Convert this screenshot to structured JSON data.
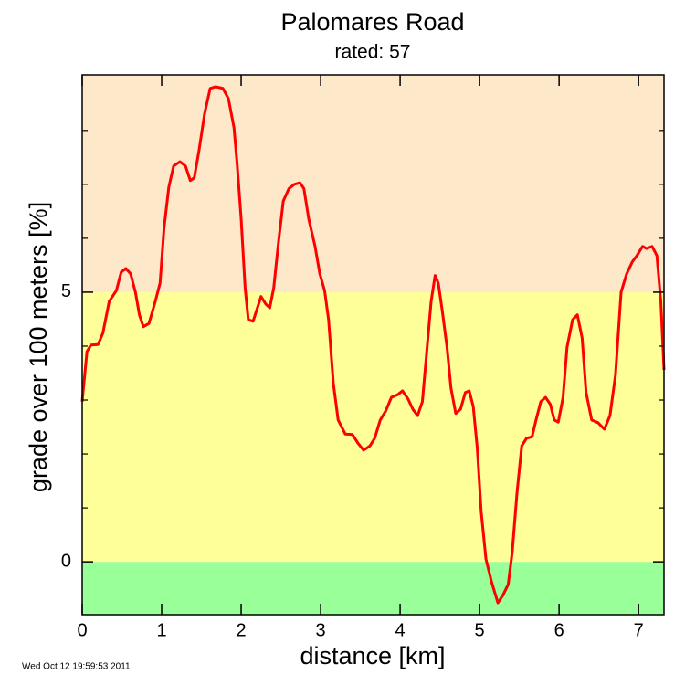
{
  "chart_data": {
    "type": "line",
    "title": "Palomares Road",
    "subtitle": "rated: 57",
    "x_label": "distance [km]",
    "y_label": "grade over 100 meters [%]",
    "footer": "Wed Oct 12 19:59:53 2011",
    "xlim": [
      0,
      7.32
    ],
    "ylim": [
      -0.98,
      9.03
    ],
    "xticks": [
      0,
      1,
      2,
      3,
      4,
      5,
      6,
      7
    ],
    "yticks": [
      0,
      5
    ],
    "minor_yticks": [
      1,
      2,
      3,
      4,
      6,
      7,
      8
    ],
    "band_edges": [
      0,
      5
    ],
    "band_colors": [
      "#99ff99",
      "#ffff99",
      "#fde9c9"
    ],
    "series": [
      {
        "color": "#ff0000",
        "x": [
          0,
          0.06,
          0.11,
          0.2,
          0.26,
          0.34,
          0.43,
          0.49,
          0.55,
          0.61,
          0.67,
          0.72,
          0.77,
          0.84,
          0.92,
          0.98,
          1.03,
          1.09,
          1.15,
          1.23,
          1.3,
          1.36,
          1.41,
          1.47,
          1.54,
          1.61,
          1.68,
          1.77,
          1.84,
          1.91,
          1.95,
          2.0,
          2.05,
          2.09,
          2.15,
          2.2,
          2.25,
          2.31,
          2.36,
          2.41,
          2.47,
          2.53,
          2.6,
          2.67,
          2.74,
          2.79,
          2.85,
          2.93,
          2.99,
          3.05,
          3.1,
          3.16,
          3.22,
          3.31,
          3.4,
          3.47,
          3.54,
          3.62,
          3.68,
          3.75,
          3.82,
          3.89,
          3.97,
          4.03,
          4.1,
          4.16,
          4.22,
          4.28,
          4.33,
          4.39,
          4.44,
          4.48,
          4.53,
          4.59,
          4.64,
          4.7,
          4.76,
          4.82,
          4.87,
          4.92,
          4.97,
          5.02,
          5.08,
          5.15,
          5.23,
          5.29,
          5.36,
          5.41,
          5.47,
          5.53,
          5.59,
          5.66,
          5.71,
          5.77,
          5.83,
          5.89,
          5.94,
          5.99,
          6.05,
          6.1,
          6.17,
          6.23,
          6.29,
          6.34,
          6.41,
          6.49,
          6.57,
          6.64,
          6.71,
          6.78,
          6.85,
          6.92,
          6.98,
          7.05,
          7.1,
          7.17,
          7.23,
          7.28,
          7.32
        ],
        "values": [
          2.97,
          3.9,
          4.02,
          4.03,
          4.24,
          4.83,
          5.03,
          5.37,
          5.44,
          5.34,
          5.0,
          4.58,
          4.36,
          4.42,
          4.83,
          5.17,
          6.19,
          6.95,
          7.34,
          7.42,
          7.34,
          7.07,
          7.12,
          7.63,
          8.31,
          8.78,
          8.81,
          8.78,
          8.59,
          8.05,
          7.37,
          6.36,
          5.08,
          4.49,
          4.46,
          4.69,
          4.92,
          4.78,
          4.71,
          5.08,
          5.93,
          6.69,
          6.92,
          7.0,
          7.03,
          6.92,
          6.36,
          5.85,
          5.34,
          5.03,
          4.49,
          3.31,
          2.63,
          2.37,
          2.36,
          2.2,
          2.07,
          2.15,
          2.29,
          2.63,
          2.8,
          3.05,
          3.1,
          3.17,
          3.02,
          2.83,
          2.71,
          2.97,
          3.81,
          4.83,
          5.31,
          5.17,
          4.66,
          3.98,
          3.22,
          2.75,
          2.83,
          3.14,
          3.17,
          2.88,
          2.12,
          0.93,
          0.05,
          -0.37,
          -0.76,
          -0.63,
          -0.42,
          0.17,
          1.27,
          2.15,
          2.29,
          2.32,
          2.63,
          2.97,
          3.05,
          2.92,
          2.63,
          2.59,
          3.05,
          3.98,
          4.49,
          4.58,
          4.15,
          3.14,
          2.63,
          2.58,
          2.46,
          2.71,
          3.47,
          5.0,
          5.34,
          5.56,
          5.68,
          5.85,
          5.81,
          5.85,
          5.68,
          4.83,
          3.56
        ]
      }
    ]
  }
}
